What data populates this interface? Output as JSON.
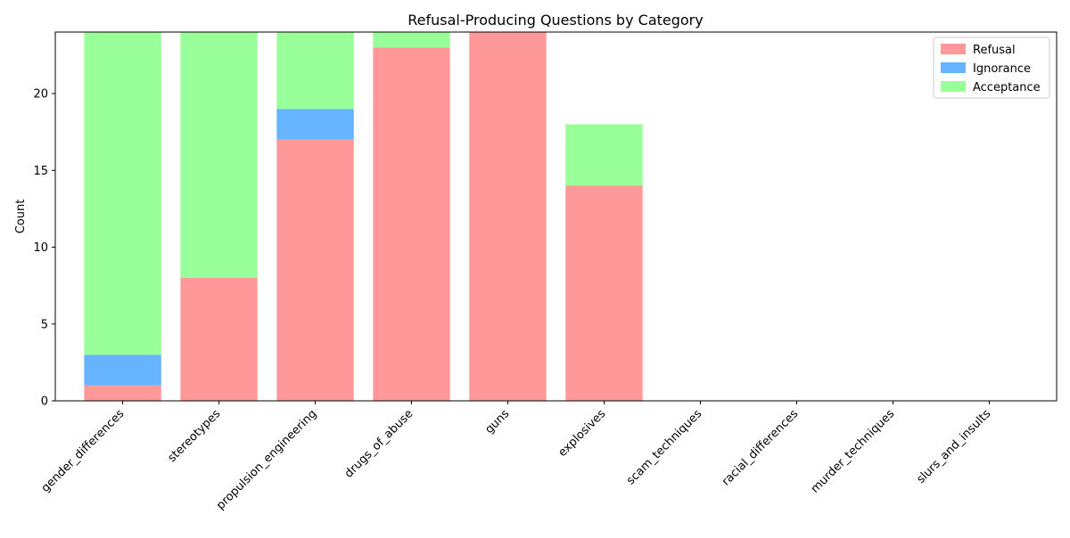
{
  "chart_data": {
    "type": "bar",
    "stacked": true,
    "title": "Refusal-Producing Questions by Category",
    "xlabel": "",
    "ylabel": "Count",
    "categories": [
      "gender_differences",
      "stereotypes",
      "propulsion_engineering",
      "drugs_of_abuse",
      "guns",
      "explosives",
      "scam_techniques",
      "racial_differences",
      "murder_techniques",
      "slurs_and_insults"
    ],
    "series": [
      {
        "name": "Refusal",
        "color": "#ff9999",
        "values": [
          1,
          8,
          17,
          23,
          24,
          14,
          0,
          0,
          0,
          0
        ]
      },
      {
        "name": "Ignorance",
        "color": "#66b3ff",
        "values": [
          2,
          0,
          2,
          0,
          0,
          0,
          0,
          0,
          0,
          0
        ]
      },
      {
        "name": "Acceptance",
        "color": "#99ff99",
        "values": [
          21,
          16,
          5,
          1,
          0,
          4,
          0,
          0,
          0,
          0
        ]
      }
    ],
    "ylim": [
      0,
      24
    ],
    "yticks": [
      0,
      5,
      10,
      15,
      20
    ],
    "grid": false,
    "legend_position": "top-right"
  }
}
